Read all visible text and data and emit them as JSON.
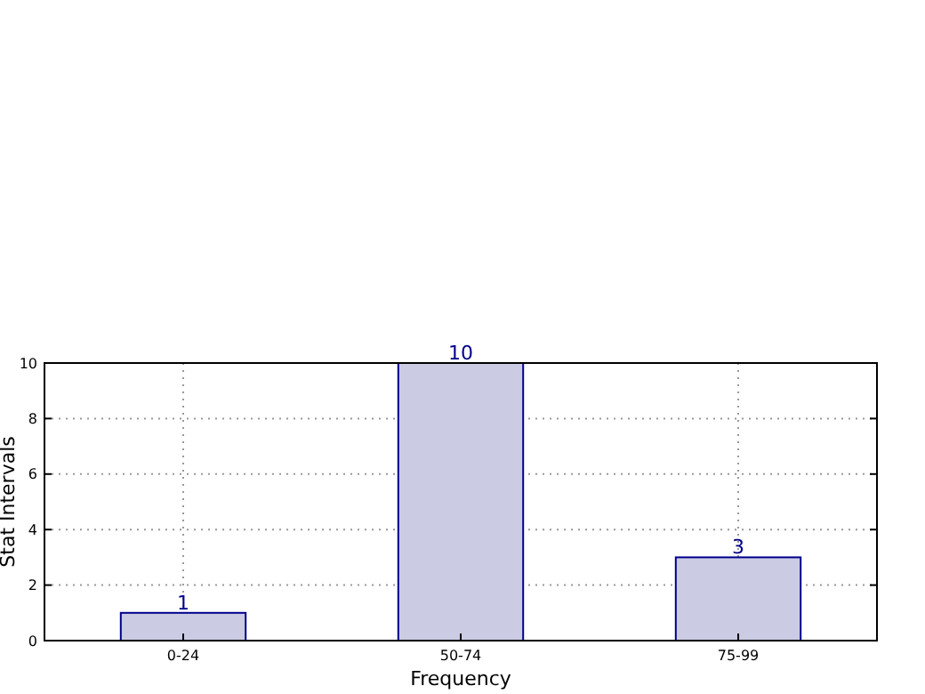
{
  "chart_data": {
    "type": "bar",
    "xlabel": "Frequency",
    "ylabel": "Stat Intervals",
    "categories": [
      "0-24",
      "50-74",
      "75-99"
    ],
    "values": [
      1,
      10,
      3
    ],
    "color": "#cbcbe3",
    "ylim": [
      0,
      10
    ],
    "yticks": [
      0,
      2,
      4,
      6,
      8,
      10
    ],
    "grid": true,
    "data_labels": true
  }
}
